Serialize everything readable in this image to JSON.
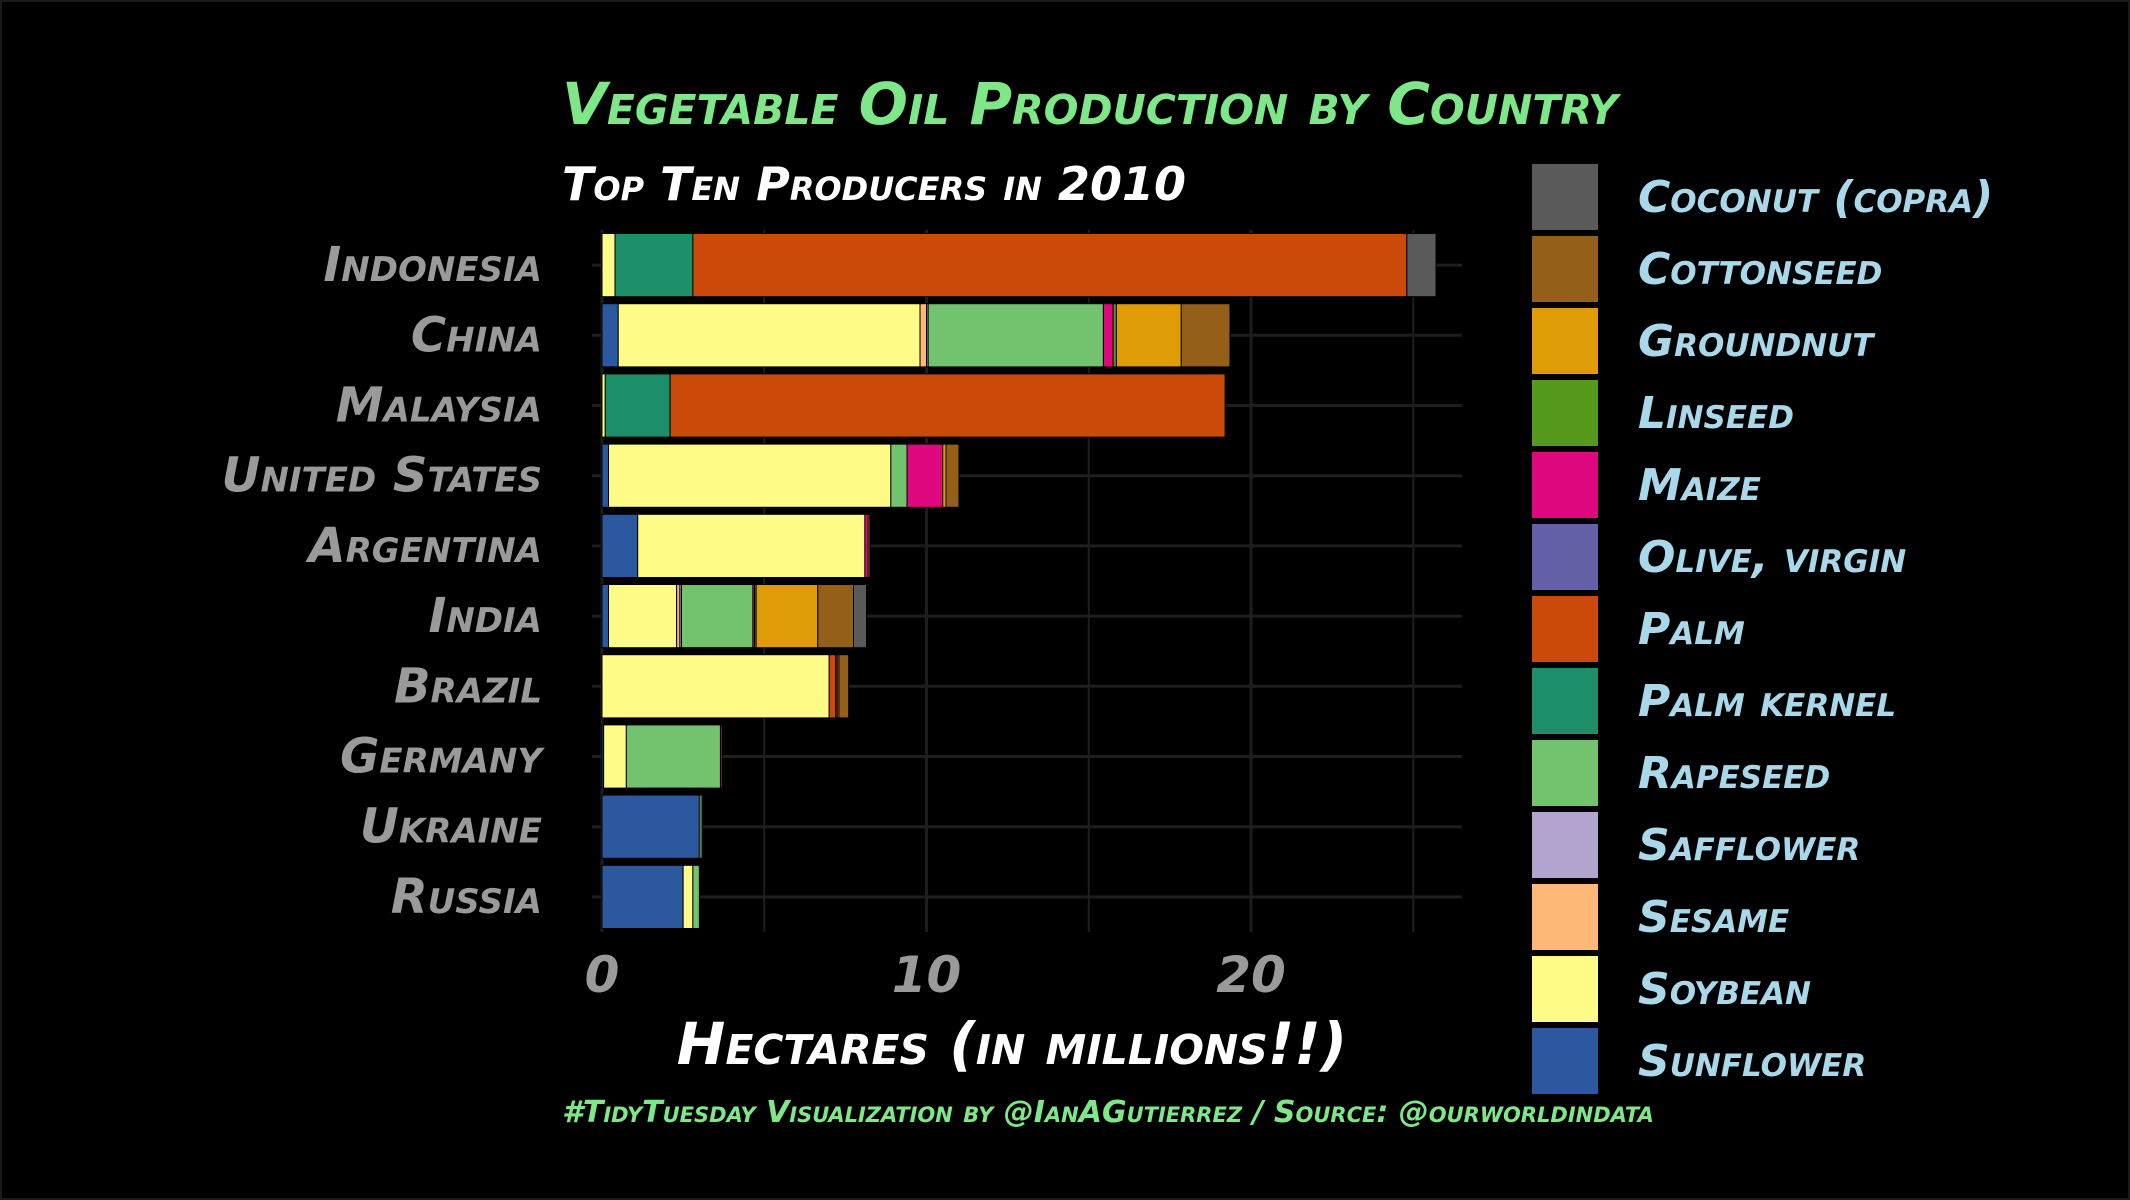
{
  "chart_data": {
    "type": "bar",
    "orientation": "horizontal",
    "stacked": true,
    "title": "Vegetable Oil Production by Country",
    "subtitle": "Top Ten Producers in 2010",
    "xlabel": "Hectares (in millions!!)",
    "caption": "#TidyTuesday Visualization by @IanAGutierrez / Source: @ourworldindata",
    "xlim": [
      0,
      26.5
    ],
    "xticks": [
      "0",
      "10",
      "20"
    ],
    "xtick_values": [
      0,
      10,
      20
    ],
    "grid": true,
    "legend_position": "right",
    "categories": [
      "Indonesia",
      "China",
      "Malaysia",
      "United States",
      "Argentina",
      "India",
      "Brazil",
      "Germany",
      "Ukraine",
      "Russia"
    ],
    "series": [
      {
        "name": "Sunflower",
        "color": "#2c58a0",
        "values": [
          0.0,
          0.5,
          0.0,
          0.2,
          1.1,
          0.2,
          0.0,
          0.05,
          3.0,
          2.5
        ]
      },
      {
        "name": "Soybean",
        "color": "#fffb87",
        "values": [
          0.4,
          9.3,
          0.1,
          8.7,
          7.0,
          2.1,
          7.0,
          0.7,
          0.05,
          0.3
        ]
      },
      {
        "name": "Sesame",
        "color": "#fdb877",
        "values": [
          0.0,
          0.2,
          0.0,
          0.0,
          0.0,
          0.1,
          0.0,
          0.0,
          0.0,
          0.0
        ]
      },
      {
        "name": "Safflower",
        "color": "#b3a3cf",
        "values": [
          0.0,
          0.05,
          0.0,
          0.0,
          0.0,
          0.05,
          0.0,
          0.0,
          0.0,
          0.0
        ]
      },
      {
        "name": "Rapeseed",
        "color": "#72c26e",
        "values": [
          0.0,
          5.4,
          0.0,
          0.5,
          0.0,
          2.2,
          0.0,
          2.9,
          0.05,
          0.2
        ]
      },
      {
        "name": "Palm kernel",
        "color": "#1c8e6a",
        "values": [
          2.4,
          0.0,
          2.0,
          0.0,
          0.0,
          0.0,
          0.0,
          0.0,
          0.0,
          0.0
        ]
      },
      {
        "name": "Palm",
        "color": "#cb4a0a",
        "values": [
          22.0,
          0.0,
          17.1,
          0.0,
          0.0,
          0.0,
          0.2,
          0.0,
          0.0,
          0.0
        ]
      },
      {
        "name": "Olive, virgin",
        "color": "#6360a7",
        "values": [
          0.0,
          0.0,
          0.0,
          0.0,
          0.0,
          0.0,
          0.0,
          0.0,
          0.0,
          0.0
        ]
      },
      {
        "name": "Maize",
        "color": "#e0087e",
        "values": [
          0.0,
          0.3,
          0.0,
          1.1,
          0.1,
          0.05,
          0.05,
          0.05,
          0.0,
          0.0
        ]
      },
      {
        "name": "Linseed",
        "color": "#559a1d",
        "values": [
          0.0,
          0.1,
          0.0,
          0.0,
          0.0,
          0.05,
          0.0,
          0.0,
          0.0,
          0.0
        ]
      },
      {
        "name": "Groundnut",
        "color": "#e09c06",
        "values": [
          0.0,
          2.0,
          0.0,
          0.1,
          0.05,
          1.9,
          0.05,
          0.0,
          0.0,
          0.0
        ]
      },
      {
        "name": "Cottonseed",
        "color": "#946019",
        "values": [
          0.0,
          1.5,
          0.0,
          0.4,
          0.0,
          1.1,
          0.3,
          0.0,
          0.0,
          0.0
        ]
      },
      {
        "name": "Coconut (copra)",
        "color": "#5a5a5a",
        "values": [
          0.9,
          0.0,
          0.0,
          0.0,
          0.0,
          0.4,
          0.0,
          0.0,
          0.0,
          0.0
        ]
      }
    ]
  },
  "legend": {
    "entries": [
      "Coconut (copra)",
      "Cottonseed",
      "Groundnut",
      "Linseed",
      "Maize",
      "Olive, virgin",
      "Palm",
      "Palm kernel",
      "Rapeseed",
      "Safflower",
      "Sesame",
      "Soybean",
      "Sunflower"
    ]
  }
}
